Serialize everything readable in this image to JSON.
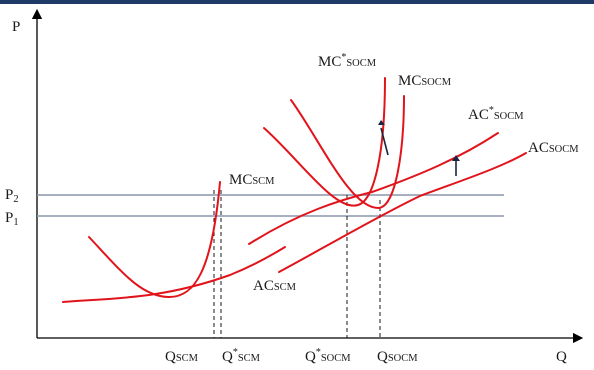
{
  "axes": {
    "y_label": "P",
    "x_label": "Q"
  },
  "price_levels": [
    {
      "main": "P",
      "sub": "2"
    },
    {
      "main": "P",
      "sub": "1"
    }
  ],
  "quantity_labels": [
    {
      "main": "Q",
      "sup": "",
      "sub": "SCM"
    },
    {
      "main": "Q",
      "sup": "*",
      "sub": "SCM"
    },
    {
      "main": "Q",
      "sup": "*",
      "sub": "SOCM"
    },
    {
      "main": "Q",
      "sup": "",
      "sub": "SOCM"
    }
  ],
  "curve_labels": {
    "mc_scm": {
      "main": "MC",
      "sup": "",
      "sub": "SCM"
    },
    "ac_scm": {
      "main": "AC",
      "sup": "",
      "sub": "SCM"
    },
    "mc_star_socm": {
      "main": "MC",
      "sup": "*",
      "sub": "SOCM"
    },
    "mc_socm": {
      "main": "MC",
      "sup": "",
      "sub": "SOCM"
    },
    "ac_star_socm": {
      "main": "AC",
      "sup": "*",
      "sub": "SOCM"
    },
    "ac_socm": {
      "main": "AC",
      "sup": "",
      "sub": "SOCM"
    }
  },
  "colors": {
    "ink": "#e2141b",
    "reference_line": "#8a96ab",
    "axis": "#000000",
    "top_bar": "#1f3a66"
  }
}
